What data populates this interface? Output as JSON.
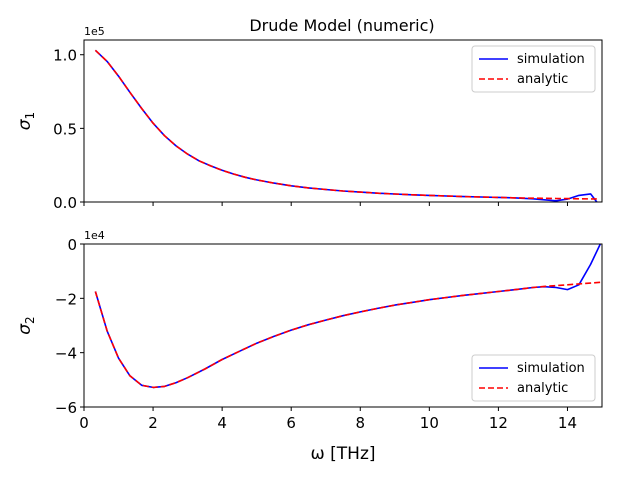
{
  "figure": {
    "title": "Drude Model (numeric)",
    "xlabel": "ω [THz]"
  },
  "colors": {
    "simulation": "#0000ff",
    "analytic": "#ff0000"
  },
  "chart_data": [
    {
      "type": "line",
      "ylabel": "σ",
      "ylabel_subscript": "1",
      "offset_label": "1e5",
      "xlim": [
        0,
        15
      ],
      "ylim": [
        0,
        1.1
      ],
      "x_ticks": [
        0,
        2,
        4,
        6,
        8,
        10,
        12,
        14
      ],
      "y_ticks": [
        0,
        0.5,
        1.0
      ],
      "y_tick_labels": [
        "0.0",
        "0.5",
        "1.0"
      ],
      "x_tick_labels_visible": false,
      "legend_position": "top-right",
      "x": [
        0.33,
        0.67,
        1.0,
        1.33,
        1.67,
        2.0,
        2.33,
        2.67,
        3.0,
        3.33,
        3.67,
        4.0,
        4.33,
        4.67,
        5.0,
        5.5,
        6.0,
        6.5,
        7.0,
        7.5,
        8.0,
        8.5,
        9.0,
        9.5,
        10.0,
        10.5,
        11.0,
        11.5,
        12.0,
        12.5,
        13.0,
        13.33,
        13.67,
        14.0,
        14.33,
        14.67,
        14.85
      ],
      "series": [
        {
          "name": "simulation",
          "style": "solid",
          "values": [
            1.03,
            0.955,
            0.855,
            0.745,
            0.635,
            0.535,
            0.45,
            0.38,
            0.325,
            0.28,
            0.245,
            0.215,
            0.19,
            0.168,
            0.15,
            0.128,
            0.11,
            0.096,
            0.085,
            0.075,
            0.067,
            0.06,
            0.054,
            0.049,
            0.045,
            0.041,
            0.037,
            0.034,
            0.031,
            0.028,
            0.022,
            0.015,
            0.008,
            0.02,
            0.045,
            0.055,
            0.0
          ]
        },
        {
          "name": "analytic",
          "style": "dashed",
          "values": [
            1.03,
            0.955,
            0.855,
            0.745,
            0.635,
            0.535,
            0.45,
            0.38,
            0.325,
            0.28,
            0.245,
            0.215,
            0.19,
            0.168,
            0.15,
            0.128,
            0.11,
            0.096,
            0.085,
            0.075,
            0.067,
            0.06,
            0.054,
            0.049,
            0.045,
            0.041,
            0.037,
            0.034,
            0.031,
            0.028,
            0.026,
            0.025,
            0.024,
            0.023,
            0.022,
            0.021,
            0.021
          ]
        }
      ]
    },
    {
      "type": "line",
      "ylabel": "σ",
      "ylabel_subscript": "2",
      "offset_label": "1e4",
      "xlim": [
        0,
        15
      ],
      "ylim": [
        -6,
        0
      ],
      "x_ticks": [
        0,
        2,
        4,
        6,
        8,
        10,
        12,
        14
      ],
      "x_tick_labels": [
        "0",
        "2",
        "4",
        "6",
        "8",
        "10",
        "12",
        "14"
      ],
      "y_ticks": [
        -6,
        -4,
        -2,
        0
      ],
      "y_tick_labels": [
        "−6",
        "−4",
        "−2",
        "0"
      ],
      "x_tick_labels_visible": true,
      "legend_position": "bottom-right",
      "x": [
        0.33,
        0.67,
        1.0,
        1.33,
        1.67,
        2.0,
        2.33,
        2.67,
        3.0,
        3.5,
        4.0,
        4.5,
        5.0,
        5.5,
        6.0,
        6.5,
        7.0,
        7.5,
        8.0,
        8.5,
        9.0,
        9.5,
        10.0,
        10.5,
        11.0,
        11.5,
        12.0,
        12.5,
        13.0,
        13.33,
        13.67,
        14.0,
        14.33,
        14.67,
        14.95
      ],
      "series": [
        {
          "name": "simulation",
          "style": "solid",
          "values": [
            -1.75,
            -3.2,
            -4.2,
            -4.85,
            -5.2,
            -5.28,
            -5.24,
            -5.1,
            -4.92,
            -4.6,
            -4.25,
            -3.95,
            -3.65,
            -3.4,
            -3.17,
            -2.97,
            -2.8,
            -2.64,
            -2.5,
            -2.37,
            -2.25,
            -2.15,
            -2.05,
            -1.97,
            -1.89,
            -1.82,
            -1.75,
            -1.68,
            -1.6,
            -1.57,
            -1.6,
            -1.68,
            -1.5,
            -0.75,
            0.0
          ]
        },
        {
          "name": "analytic",
          "style": "dashed",
          "values": [
            -1.75,
            -3.2,
            -4.2,
            -4.85,
            -5.2,
            -5.28,
            -5.24,
            -5.1,
            -4.92,
            -4.6,
            -4.25,
            -3.95,
            -3.65,
            -3.4,
            -3.17,
            -2.97,
            -2.8,
            -2.64,
            -2.5,
            -2.37,
            -2.25,
            -2.15,
            -2.05,
            -1.97,
            -1.89,
            -1.82,
            -1.75,
            -1.68,
            -1.6,
            -1.56,
            -1.53,
            -1.5,
            -1.47,
            -1.44,
            -1.41
          ]
        }
      ]
    }
  ]
}
